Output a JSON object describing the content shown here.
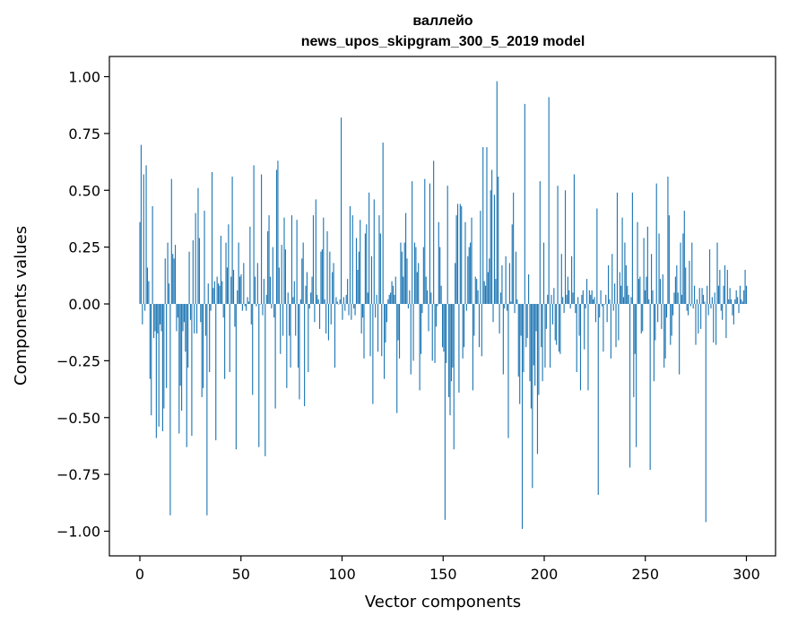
{
  "chart_data": {
    "type": "bar",
    "title": "валлейо",
    "subtitle": "news_upos_skipgram_300_5_2019 model",
    "xlabel": "Vector components",
    "ylabel": "Components values",
    "xlim": [
      -15,
      314
    ],
    "ylim": [
      -1.1,
      1.08
    ],
    "xticks": [
      0,
      50,
      100,
      150,
      200,
      250,
      300
    ],
    "xtick_labels": [
      "0",
      "50",
      "100",
      "150",
      "200",
      "250",
      "300"
    ],
    "yticks": [
      1.0,
      0.75,
      0.5,
      0.25,
      0.0,
      -0.25,
      -0.5,
      -0.75,
      -1.0
    ],
    "ytick_labels": [
      "1.00",
      "0.75",
      "0.50",
      "0.25",
      "0.00",
      "−0.25",
      "−0.50",
      "−0.75",
      "−1.00"
    ],
    "grid": false,
    "bar_color": "#1f77b4",
    "values": [
      0.36,
      0.7,
      -0.09,
      0.57,
      -0.03,
      0.61,
      0.16,
      0.1,
      -0.33,
      -0.49,
      0.43,
      -0.15,
      -0.12,
      -0.59,
      -0.13,
      -0.54,
      -0.09,
      -0.12,
      -0.56,
      -0.46,
      0.2,
      -0.37,
      0.27,
      0.09,
      -0.93,
      0.55,
      0.22,
      0.2,
      0.26,
      -0.12,
      -0.06,
      -0.57,
      -0.36,
      -0.47,
      -0.12,
      -0.08,
      -0.21,
      -0.63,
      -0.28,
      0.23,
      -0.07,
      -0.58,
      0.28,
      -0.13,
      0.4,
      -0.13,
      0.51,
      0.29,
      -0.08,
      -0.41,
      -0.37,
      0.41,
      -0.14,
      -0.93,
      0.09,
      -0.3,
      -0.03,
      0.58,
      0.07,
      0.1,
      -0.6,
      0.12,
      0.09,
      0.08,
      0.3,
      0.1,
      -0.06,
      -0.33,
      0.27,
      0.16,
      0.35,
      -0.3,
      0.12,
      0.56,
      0.15,
      -0.1,
      -0.64,
      0.06,
      0.27,
      0.12,
      0.13,
      -0.03,
      0.18,
      -0.01,
      -0.03,
      0.03,
      0.01,
      0.34,
      -0.09,
      -0.4,
      0.61,
      0.12,
      -0.01,
      0.18,
      -0.63,
      0.0,
      0.57,
      -0.05,
      0.11,
      -0.67,
      0.04,
      0.32,
      0.39,
      0.12,
      -0.02,
      0.25,
      -0.06,
      -0.46,
      0.59,
      0.63,
      0.16,
      -0.22,
      0.26,
      -0.14,
      0.38,
      0.24,
      -0.37,
      0.05,
      -0.14,
      -0.28,
      0.39,
      0.03,
      0.1,
      -0.14,
      0.37,
      -0.28,
      -0.42,
      0.02,
      0.2,
      0.27,
      -0.45,
      0.08,
      0.14,
      -0.3,
      -0.02,
      0.05,
      0.12,
      0.39,
      -0.08,
      0.46,
      0.04,
      0.02,
      -0.11,
      0.23,
      0.24,
      0.38,
      0.02,
      -0.13,
      0.32,
      -0.16,
      0.23,
      -0.09,
      0.14,
      0.18,
      -0.28,
      0.03,
      0.01,
      0.0,
      0.02,
      0.82,
      -0.07,
      0.03,
      -0.03,
      0.04,
      0.11,
      -0.05,
      0.43,
      -0.07,
      0.39,
      -0.02,
      -0.05,
      0.29,
      0.15,
      0.23,
      0.37,
      -0.13,
      -0.06,
      -0.24,
      0.31,
      0.35,
      0.05,
      0.49,
      -0.23,
      0.21,
      -0.44,
      0.46,
      -0.06,
      0.04,
      -0.21,
      0.39,
      0.31,
      -0.23,
      0.71,
      -0.33,
      -0.17,
      -0.08,
      0.02,
      0.04,
      0.05,
      0.1,
      0.08,
      0.04,
      0.12,
      -0.48,
      -0.16,
      -0.24,
      0.27,
      0.23,
      0.12,
      0.27,
      0.4,
      0.2,
      -0.02,
      0.06,
      -0.31,
      0.54,
      -0.25,
      0.27,
      0.25,
      0.14,
      0.18,
      -0.38,
      -0.22,
      -0.04,
      0.25,
      0.55,
      0.12,
      0.06,
      -0.12,
      0.53,
      0.05,
      -0.25,
      0.63,
      -0.26,
      -0.1,
      -0.01,
      0.36,
      0.25,
      0.08,
      -0.19,
      -0.21,
      -0.95,
      -0.26,
      0.52,
      -0.41,
      -0.49,
      -0.34,
      -0.28,
      -0.64,
      0.18,
      0.39,
      0.44,
      -0.39,
      0.44,
      0.43,
      -0.24,
      -0.19,
      0.36,
      -0.03,
      0.21,
      0.25,
      0.27,
      0.38,
      -0.38,
      -0.14,
      0.12,
      0.11,
      0.06,
      -0.19,
      0.41,
      -0.23,
      0.69,
      0.1,
      0.08,
      0.69,
      0.14,
      0.2,
      0.5,
      0.59,
      -0.08,
      0.48,
      0.11,
      0.98,
      0.56,
      -0.13,
      0.05,
      0.17,
      -0.31,
      -0.02,
      0.21,
      -0.03,
      -0.59,
      0.18,
      0.01,
      0.35,
      0.49,
      -0.04,
      0.23,
      0.02,
      -0.32,
      -0.44,
      -0.14,
      -0.99,
      -0.3,
      0.88,
      -0.19,
      -0.15,
      0.13,
      -0.34,
      -0.46,
      -0.81,
      -0.27,
      -0.36,
      -0.12,
      -0.66,
      -0.4,
      0.54,
      -0.19,
      -0.34,
      0.27,
      -0.28,
      -0.11,
      0.04,
      0.91,
      -0.28,
      0.04,
      -0.09,
      0.07,
      -0.16,
      -0.18,
      0.52,
      -0.21,
      -0.22,
      0.22,
      0.03,
      -0.04,
      0.5,
      0.04,
      0.12,
      0.06,
      -0.02,
      0.21,
      0.05,
      0.57,
      -0.04,
      -0.3,
      0.03,
      -0.14,
      -0.38,
      0.04,
      0.06,
      -0.2,
      -0.02,
      0.11,
      -0.38,
      0.06,
      0.04,
      0.06,
      0.02,
      0.03,
      -0.08,
      0.42,
      -0.84,
      -0.06,
      0.06,
      -0.01,
      -0.21,
      0.0,
      0.04,
      -0.08,
      0.17,
      0.02,
      -0.24,
      0.22,
      -0.03,
      0.09,
      -0.19,
      0.49,
      -0.16,
      0.14,
      0.08,
      0.38,
      0.03,
      0.27,
      0.17,
      0.08,
      0.04,
      -0.72,
      0.03,
      0.49,
      -0.41,
      -0.22,
      -0.63,
      0.36,
      0.11,
      0.12,
      -0.13,
      -0.12,
      0.29,
      0.06,
      0.12,
      0.34,
      0.02,
      -0.73,
      0.22,
      0.06,
      -0.34,
      -0.16,
      0.53,
      -0.08,
      0.31,
      0.11,
      -0.11,
      0.13,
      -0.28,
      -0.24,
      -0.06,
      0.56,
      0.39,
      -0.18,
      -0.14,
      -0.05,
      0.05,
      0.12,
      0.17,
      0.05,
      -0.31,
      0.27,
      0.04,
      0.31,
      0.41,
      0.16,
      -0.03,
      -0.05,
      0.19,
      -0.01,
      0.27,
      -0.02,
      0.08,
      -0.18,
      0.02,
      -0.13,
      0.07,
      -0.11,
      0.07,
      0.04,
      0.01,
      -0.96,
      0.08,
      -0.05,
      0.24,
      -0.02,
      0.03,
      -0.17,
      0.05,
      -0.18,
      0.27,
      0.08,
      0.15,
      -0.03,
      -0.07,
      0.08,
      0.17,
      -0.15,
      0.15,
      0.02,
      0.07,
      0.02,
      -0.05,
      -0.09,
      0.02,
      0.06,
      0.03,
      -0.04,
      0.08,
      0.02,
      0.01,
      0.06,
      0.15,
      0.08
    ]
  }
}
